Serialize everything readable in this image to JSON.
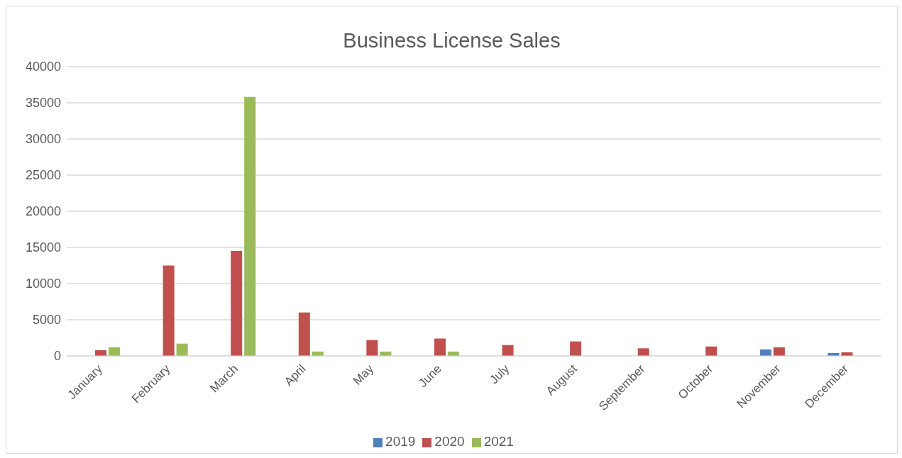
{
  "chart_data": {
    "type": "bar",
    "title": "Business License Sales",
    "categories": [
      "January",
      "February",
      "March",
      "April",
      "May",
      "June",
      "July",
      "August",
      "September",
      "October",
      "November",
      "December"
    ],
    "series": [
      {
        "name": "2019",
        "color": "#4f81bd",
        "values": [
          null,
          null,
          null,
          null,
          null,
          null,
          null,
          null,
          null,
          null,
          900,
          400
        ]
      },
      {
        "name": "2020",
        "color": "#c0504d",
        "values": [
          800,
          12500,
          14500,
          6000,
          2200,
          2400,
          1500,
          2000,
          1050,
          1300,
          1200,
          500
        ]
      },
      {
        "name": "2021",
        "color": "#9bbb59",
        "values": [
          1200,
          1700,
          35800,
          600,
          600,
          600,
          null,
          null,
          null,
          null,
          null,
          null
        ]
      }
    ],
    "ylim": [
      0,
      40000
    ],
    "yticks": [
      0,
      5000,
      10000,
      15000,
      20000,
      25000,
      30000,
      35000,
      40000
    ],
    "grid": "y",
    "legend": "bottom"
  }
}
